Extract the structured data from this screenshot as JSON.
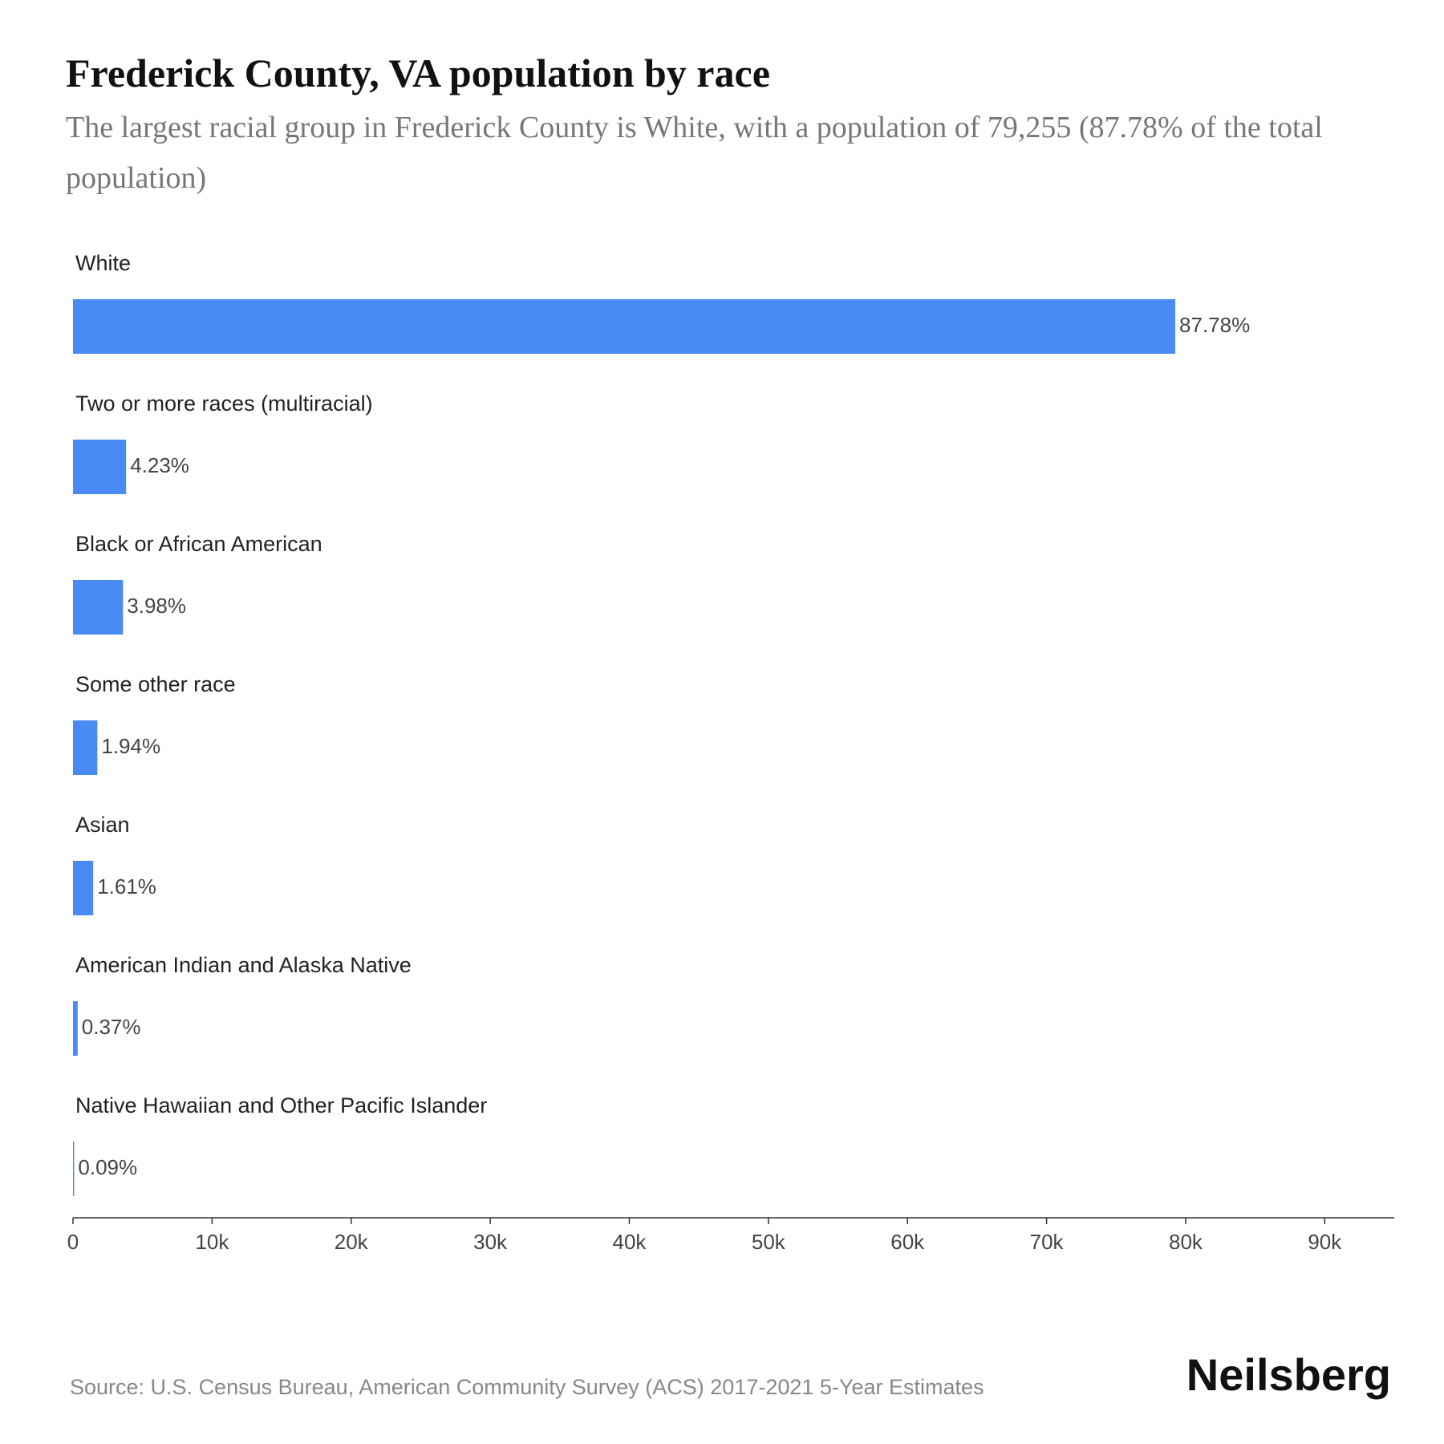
{
  "chart_data": {
    "type": "hbar",
    "title": "Frederick County, VA population by race",
    "subtitle": "The largest racial group in Frederick County is White, with a population of 79,255 (87.78% of the total population)",
    "categories": [
      "White",
      "Two or more races (multiracial)",
      "Black or African American",
      "Some other race",
      "Asian",
      "American Indian and Alaska Native",
      "Native Hawaiian and Other Pacific Islander"
    ],
    "values": [
      79255,
      3819,
      3593,
      1752,
      1454,
      334,
      81
    ],
    "value_labels": [
      "87.78%",
      "4.23%",
      "3.98%",
      "1.94%",
      "1.61%",
      "0.37%",
      "0.09%"
    ],
    "color": "#4a8af4",
    "xlim": [
      0,
      95000
    ],
    "xticks": [
      0,
      {
        "value": 10000,
        "label": "10k"
      },
      {
        "value": 20000,
        "label": "20k"
      },
      {
        "value": 30000,
        "label": "30k"
      },
      {
        "value": 40000,
        "label": "40k"
      },
      {
        "value": 50000,
        "label": "50k"
      },
      {
        "value": 60000,
        "label": "60k"
      },
      {
        "value": 70000,
        "label": "70k"
      },
      {
        "value": 80000,
        "label": "80k"
      },
      {
        "value": 90000,
        "label": "90k"
      }
    ],
    "source": "Source: U.S. Census Bureau, American Community Survey (ACS) 2017-2021 5-Year Estimates",
    "brand": "Neilsberg"
  }
}
